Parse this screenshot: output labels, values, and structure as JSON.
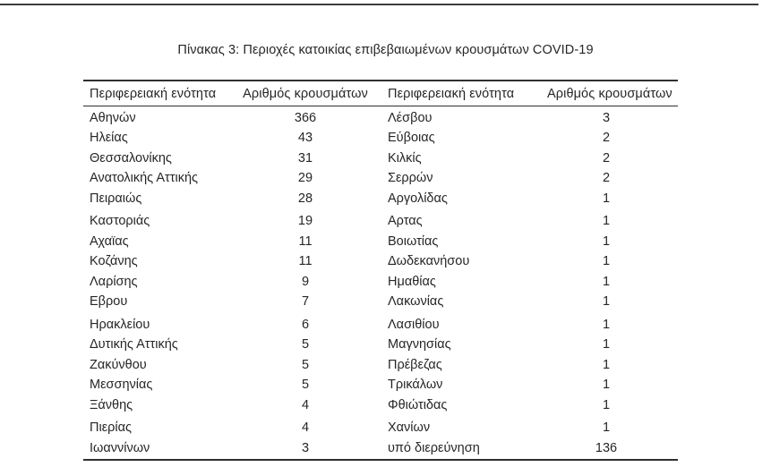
{
  "title": "Πίνακας 3: Περιοχές κατοικίας επιβεβαιωμένων κρουσμάτων COVID-19",
  "table": {
    "headers": [
      "Περιφερειακή ενότητα",
      "Αριθμός κρουσμάτων",
      "Περιφερειακή ενότητα",
      "Αριθμός κρουσμάτων"
    ],
    "groups": [
      {
        "rows": [
          {
            "cells": [
              "Αθηνών",
              "366",
              "Λέσβου",
              "3"
            ]
          },
          {
            "cells": [
              "Ηλείας",
              "43",
              "Εύβοιας",
              "2"
            ]
          },
          {
            "cells": [
              "Θεσσαλονίκης",
              "31",
              "Κιλκίς",
              "2"
            ]
          },
          {
            "cells": [
              "Ανατολικής Αττικής",
              "29",
              "Σερρών",
              "2"
            ]
          },
          {
            "cells": [
              "Πειραιώς",
              "28",
              "Αργολίδας",
              "1"
            ]
          }
        ]
      },
      {
        "rows": [
          {
            "cells": [
              "Καστοριάς",
              "19",
              "Αρτας",
              "1"
            ]
          },
          {
            "cells": [
              "Αχαϊας",
              "11",
              "Βοιωτίας",
              "1"
            ]
          },
          {
            "cells": [
              "Κοζάνης",
              "11",
              "Δωδεκανήσου",
              "1"
            ]
          },
          {
            "cells": [
              "Λαρίσης",
              "9",
              "Ημαθίας",
              "1"
            ]
          },
          {
            "cells": [
              "Εβρου",
              "7",
              "Λακωνίας",
              "1"
            ]
          }
        ]
      },
      {
        "rows": [
          {
            "cells": [
              "Ηρακλείου",
              "6",
              "Λασιθίου",
              "1"
            ]
          },
          {
            "cells": [
              "Δυτικής Αττικής",
              "5",
              "Μαγνησίας",
              "1"
            ]
          },
          {
            "cells": [
              "Ζακύνθου",
              "5",
              "Πρέβεζας",
              "1"
            ]
          },
          {
            "cells": [
              "Μεσσηνίας",
              "5",
              "Τρικάλων",
              "1"
            ]
          },
          {
            "cells": [
              "Ξάνθης",
              "4",
              "Φθιώτιδας",
              "1"
            ]
          }
        ]
      },
      {
        "rows": [
          {
            "cells": [
              "Πιερίας",
              "4",
              "Χανίων",
              "1"
            ]
          },
          {
            "cells": [
              "Ιωαννίνων",
              "3",
              "υπό διερεύνηση",
              "136"
            ]
          }
        ]
      }
    ]
  },
  "colors": {
    "text": "#262626",
    "rule": "#2f2f2f",
    "background": "#ffffff"
  }
}
